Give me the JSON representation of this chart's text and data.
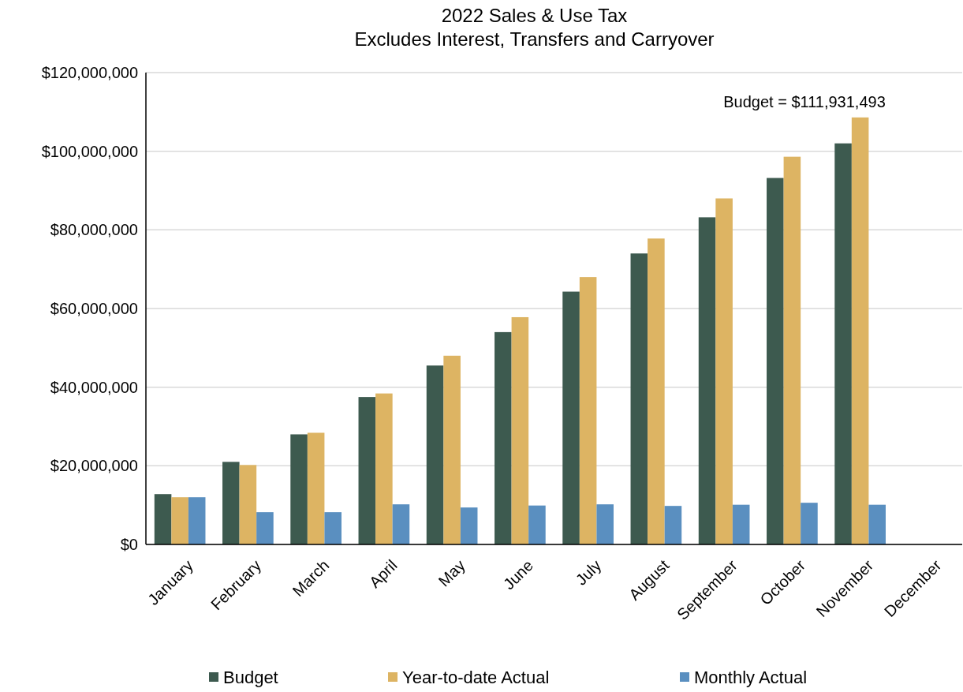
{
  "chart_data": {
    "type": "bar",
    "title": "2022 Sales & Use Tax\nExcludes Interest, Transfers and Carryover",
    "categories": [
      "January",
      "February",
      "March",
      "April",
      "May",
      "June",
      "July",
      "August",
      "September",
      "October",
      "November",
      "December"
    ],
    "series": [
      {
        "name": "Budget",
        "color": "#3d5a4f",
        "values": [
          12800000,
          21000000,
          28000000,
          37500000,
          45500000,
          54000000,
          64300000,
          74000000,
          83200000,
          93200000,
          102000000,
          null
        ]
      },
      {
        "name": "Year-to-date Actual",
        "color": "#ddb463",
        "values": [
          12000000,
          20200000,
          28400000,
          38400000,
          48000000,
          57800000,
          68000000,
          77800000,
          88000000,
          98600000,
          108600000,
          null
        ]
      },
      {
        "name": "Monthly Actual",
        "color": "#5a8fc0",
        "values": [
          12000000,
          8200000,
          8200000,
          10200000,
          9400000,
          9900000,
          10200000,
          9800000,
          10100000,
          10600000,
          10100000,
          null
        ]
      }
    ],
    "ylim": [
      0,
      120000000
    ],
    "yticks": [
      {
        "value": 0,
        "label": "$0"
      },
      {
        "value": 20000000,
        "label": "$20,000,000"
      },
      {
        "value": 40000000,
        "label": "$40,000,000"
      },
      {
        "value": 60000000,
        "label": "$60,000,000"
      },
      {
        "value": 80000000,
        "label": "$80,000,000"
      },
      {
        "value": 100000000,
        "label": "$100,000,000"
      },
      {
        "value": 120000000,
        "label": "$120,000,000"
      }
    ],
    "grid": "y",
    "legend": "bottom",
    "annotations": [
      "Budget = $111,931,493"
    ]
  }
}
